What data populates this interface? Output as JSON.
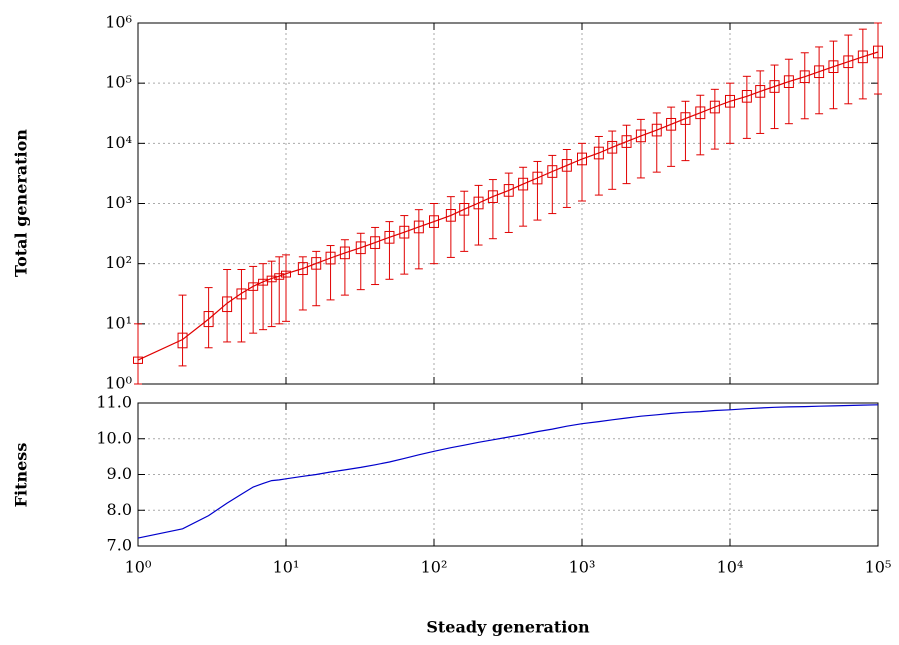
{
  "chart_data": [
    {
      "type": "box",
      "ylabel": "Total generation",
      "xscale": "log",
      "yscale": "log",
      "grid": true,
      "x": [
        1,
        2,
        3,
        4,
        5,
        6,
        7,
        8,
        9,
        10,
        13,
        16,
        20,
        25,
        32,
        40,
        50,
        63,
        79,
        100,
        130,
        160,
        200,
        250,
        320,
        400,
        500,
        630,
        790,
        1000,
        1300,
        1600,
        2000,
        2500,
        3200,
        4000,
        5000,
        6300,
        7900,
        10000,
        13000,
        16000,
        20000,
        25000,
        32000,
        40000,
        50000,
        63000,
        79000,
        100000
      ],
      "series": [
        {
          "color": "#e00000",
          "values": [
            2.5,
            5.5,
            12,
            22,
            32,
            42,
            50,
            57,
            62,
            68,
            83,
            101,
            124,
            151,
            184,
            224,
            274,
            334,
            408,
            500,
            635,
            800,
            1020,
            1300,
            1650,
            2100,
            2650,
            3400,
            4300,
            5500,
            6900,
            8600,
            10700,
            13300,
            16600,
            20700,
            25800,
            32200,
            40100,
            50000,
            60400,
            73000,
            88000,
            106000,
            128000,
            155000,
            188000,
            227000,
            274000,
            330000
          ],
          "q1": [
            2.2,
            4,
            9,
            16,
            26,
            36,
            44,
            50,
            55,
            60,
            66,
            81,
            99,
            121,
            147,
            179,
            219,
            267,
            326,
            400,
            508,
            640,
            816,
            1040,
            1320,
            1680,
            2120,
            2720,
            3440,
            4400,
            5520,
            6880,
            8560,
            10640,
            13280,
            16560,
            20640,
            25760,
            32080,
            40000,
            48320,
            58400,
            70400,
            84800,
            102400,
            124000,
            150400,
            181600,
            219200,
            264000
          ],
          "q3": [
            2.8,
            7,
            16,
            28,
            38,
            48,
            55,
            62,
            68,
            75,
            104,
            126,
            155,
            189,
            230,
            280,
            343,
            418,
            510,
            625,
            794,
            1000,
            1275,
            1625,
            2063,
            2625,
            3313,
            4250,
            5375,
            6875,
            8625,
            10750,
            13375,
            16625,
            20750,
            25875,
            32250,
            40250,
            50125,
            62500,
            75500,
            91250,
            110000,
            132500,
            160000,
            193750,
            235000,
            283750,
            342500,
            412500
          ],
          "whisker_low": [
            1,
            2,
            4,
            5,
            5,
            7,
            8,
            9,
            10,
            11,
            17,
            20,
            25,
            30,
            37,
            45,
            55,
            67,
            82,
            100,
            127,
            160,
            204,
            260,
            330,
            420,
            530,
            680,
            860,
            1100,
            1380,
            1720,
            2140,
            2660,
            3320,
            4140,
            5160,
            6440,
            8020,
            10000,
            12080,
            14600,
            17600,
            21200,
            25600,
            31000,
            37600,
            45400,
            54800,
            66000
          ],
          "whisker_high": [
            10,
            30,
            40,
            80,
            80,
            90,
            100,
            110,
            130,
            140,
            130,
            160,
            200,
            250,
            320,
            400,
            500,
            630,
            790,
            1000,
            1300,
            1600,
            2000,
            2500,
            3200,
            4000,
            5000,
            6300,
            7900,
            10000,
            13000,
            16000,
            20000,
            25000,
            32000,
            40000,
            50000,
            63000,
            79000,
            100000,
            130000,
            160000,
            200000,
            250000,
            320000,
            400000,
            500000,
            630000,
            790000,
            1000000
          ]
        }
      ],
      "xlim": [
        1,
        100000
      ],
      "ylim": [
        1,
        1000000
      ],
      "xticks": [
        1,
        10,
        100,
        1000,
        10000,
        100000
      ],
      "yticks": [
        {
          "value": 1,
          "label": "10⁰"
        },
        {
          "value": 10,
          "label": "10¹"
        },
        {
          "value": 100,
          "label": "10²"
        },
        {
          "value": 1000,
          "label": "10³"
        },
        {
          "value": 10000,
          "label": "10⁴"
        },
        {
          "value": 100000,
          "label": "10⁵"
        },
        {
          "value": 1000000,
          "label": "10⁶"
        }
      ]
    },
    {
      "type": "line",
      "xlabel": "Steady generation",
      "ylabel": "Fitness",
      "xscale": "log",
      "grid": true,
      "x": [
        1,
        2,
        3,
        4,
        5,
        6,
        7,
        8,
        9,
        10,
        13,
        16,
        20,
        25,
        32,
        40,
        50,
        63,
        79,
        100,
        130,
        160,
        200,
        250,
        320,
        400,
        500,
        630,
        790,
        1000,
        1300,
        1600,
        2000,
        2500,
        3200,
        4000,
        5000,
        6300,
        7900,
        10000,
        13000,
        16000,
        20000,
        25000,
        32000,
        40000,
        50000,
        63000,
        79000,
        100000
      ],
      "series": [
        {
          "color": "#0000cc",
          "values": [
            7.22,
            7.48,
            7.85,
            8.2,
            8.45,
            8.65,
            8.75,
            8.83,
            8.85,
            8.88,
            8.95,
            9.0,
            9.07,
            9.13,
            9.2,
            9.27,
            9.35,
            9.45,
            9.55,
            9.65,
            9.75,
            9.82,
            9.9,
            9.97,
            10.05,
            10.12,
            10.2,
            10.27,
            10.35,
            10.42,
            10.48,
            10.53,
            10.58,
            10.63,
            10.67,
            10.71,
            10.74,
            10.76,
            10.79,
            10.81,
            10.84,
            10.86,
            10.88,
            10.89,
            10.9,
            10.91,
            10.92,
            10.93,
            10.94,
            10.95
          ]
        }
      ],
      "xlim": [
        1,
        100000
      ],
      "ylim": [
        7,
        11
      ],
      "xticks": [
        {
          "value": 1,
          "label": "10⁰"
        },
        {
          "value": 10,
          "label": "10¹"
        },
        {
          "value": 100,
          "label": "10²"
        },
        {
          "value": 1000,
          "label": "10³"
        },
        {
          "value": 10000,
          "label": "10⁴"
        },
        {
          "value": 100000,
          "label": "10⁵"
        }
      ],
      "yticks": [
        {
          "value": 7,
          "label": "7.0"
        },
        {
          "value": 8,
          "label": "8.0"
        },
        {
          "value": 9,
          "label": "9.0"
        },
        {
          "value": 10,
          "label": "10.0"
        },
        {
          "value": 11,
          "label": "11.0"
        }
      ]
    }
  ]
}
